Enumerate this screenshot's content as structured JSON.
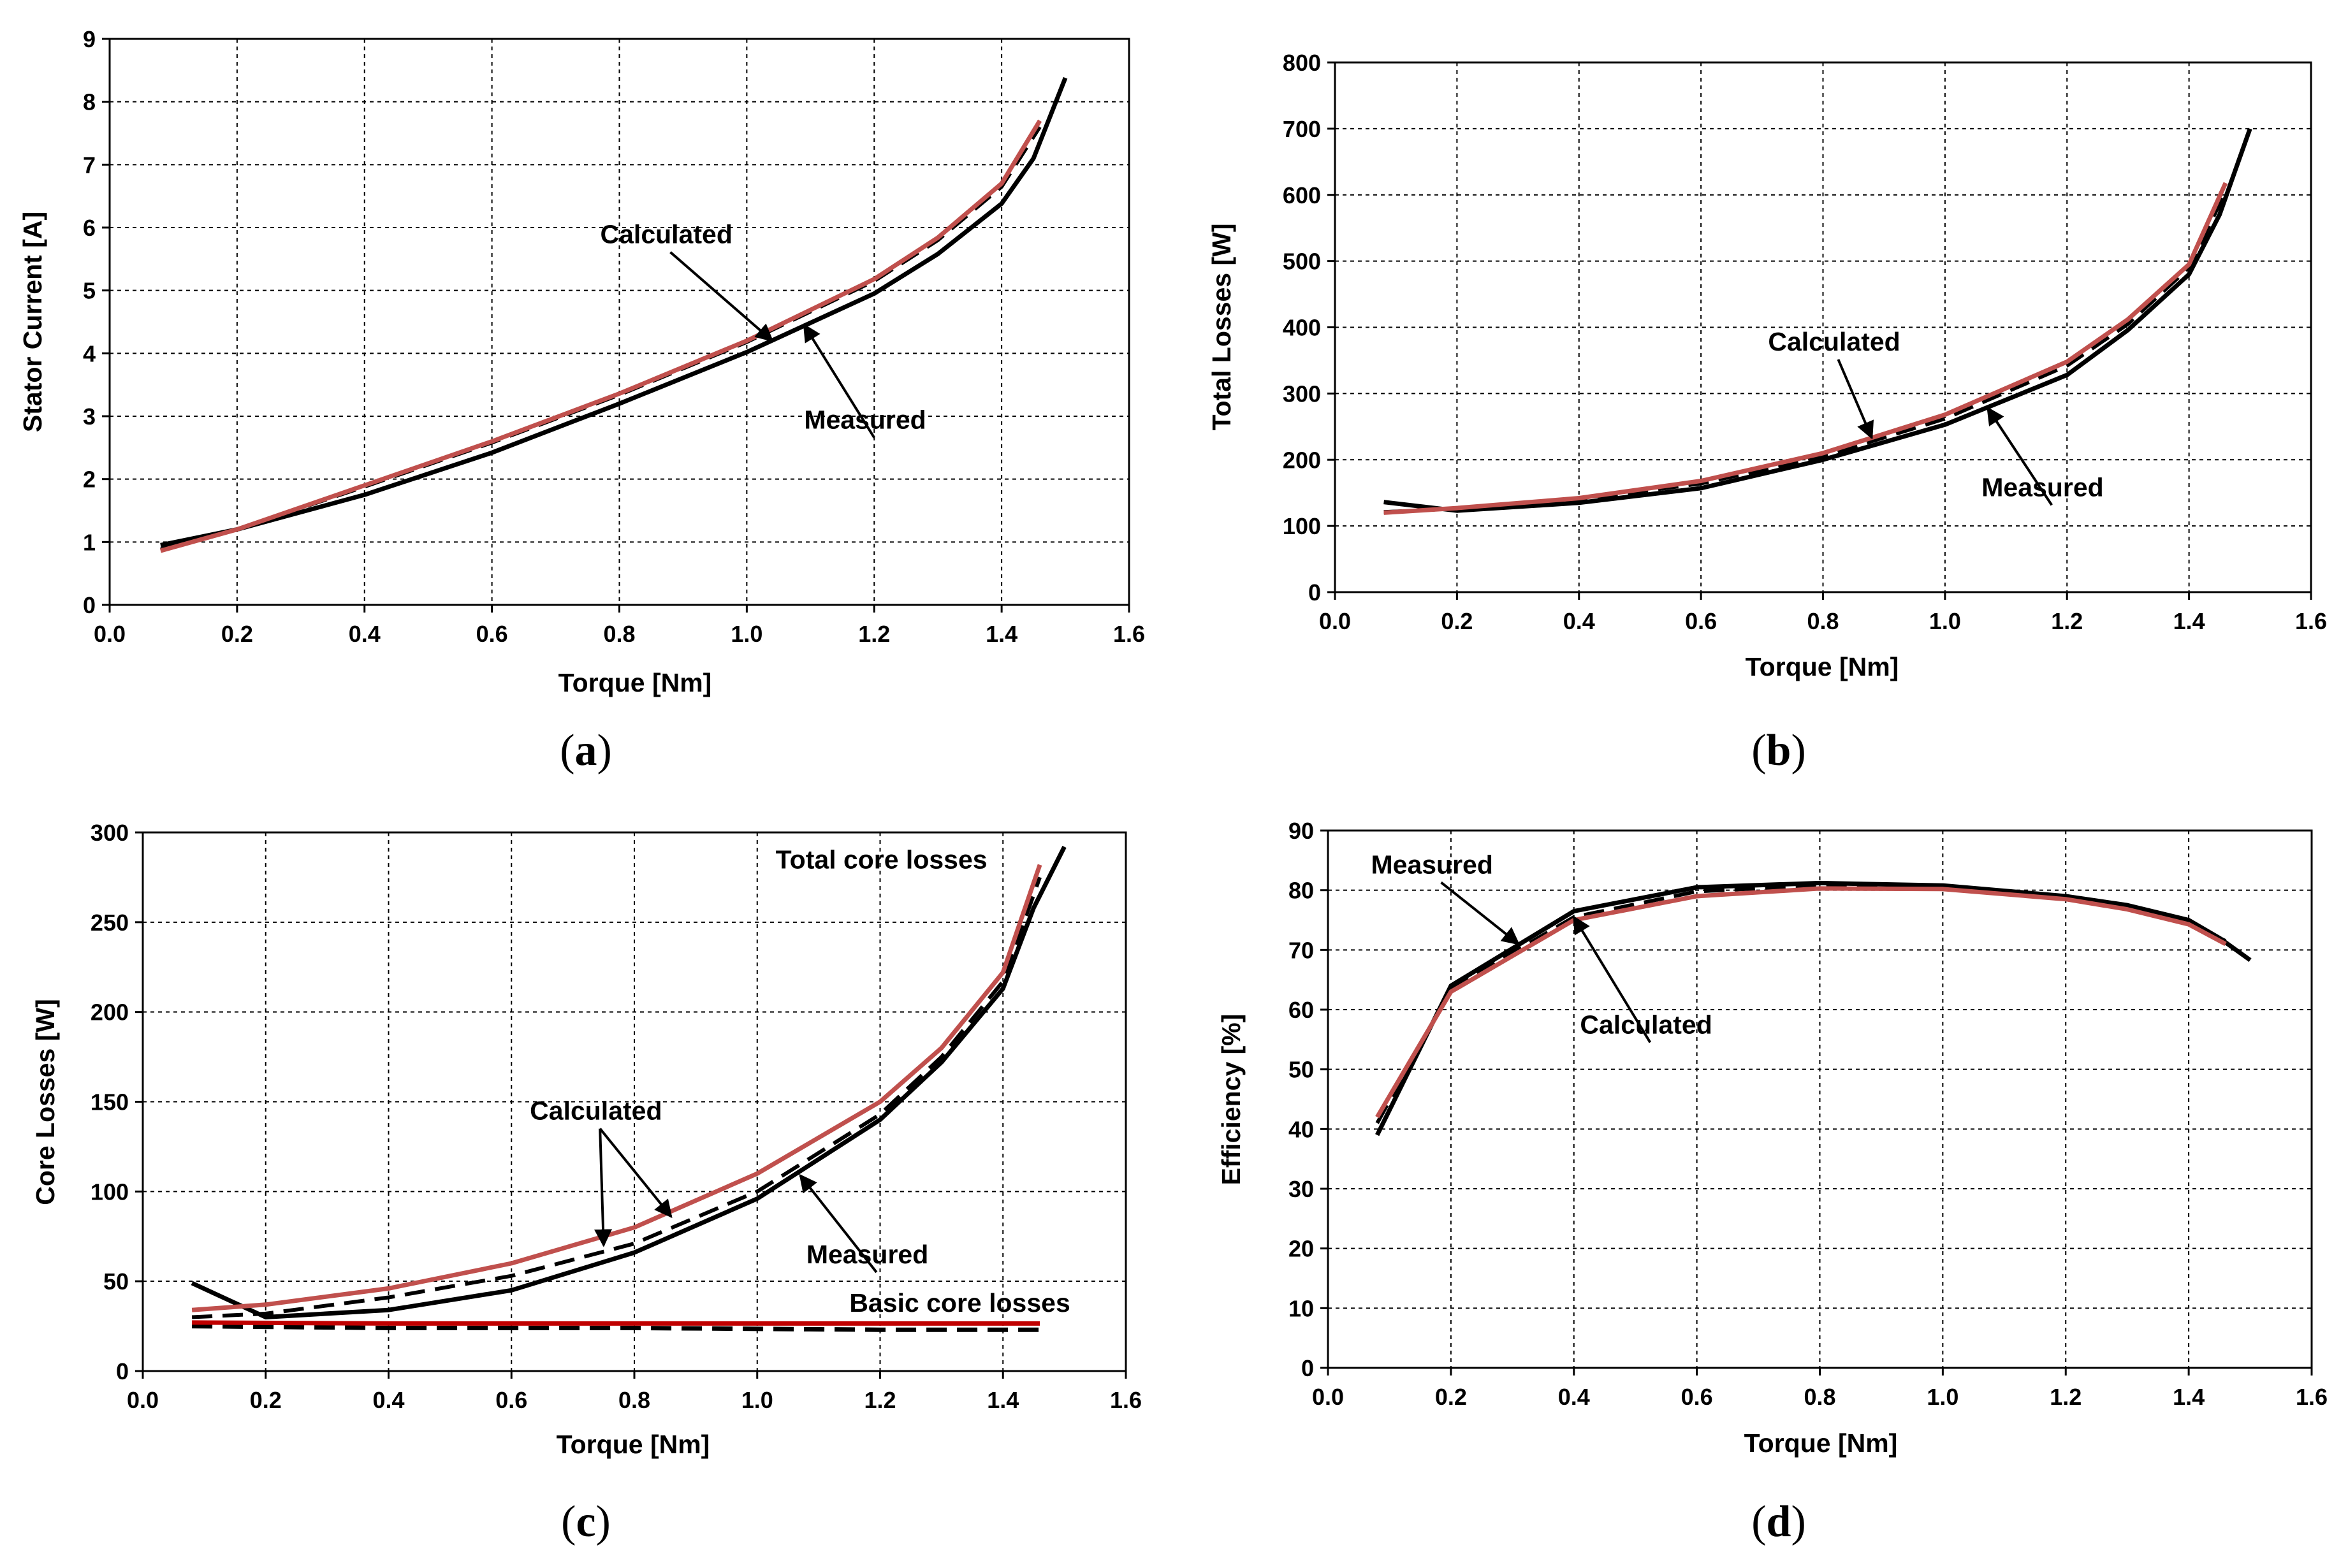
{
  "colors": {
    "measured": "#000000",
    "calculated_solid": "#c0504d",
    "calculated_dashed": "#000000",
    "basic_calculated": "#c00000",
    "grid": "#000000"
  },
  "chart_data": [
    {
      "id": "a",
      "type": "line",
      "panel_label": "(a)",
      "xlabel": "Torque [Nm]",
      "ylabel": "Stator Current [A]",
      "xlim": [
        0,
        1.6
      ],
      "ylim": [
        0,
        9
      ],
      "xticks": [
        0.0,
        0.2,
        0.4,
        0.6,
        0.8,
        1.0,
        1.2,
        1.4,
        1.6
      ],
      "xtick_labels": [
        "0.0",
        "0.2",
        "0.4",
        "0.6",
        "0.8",
        "1.0",
        "1.2",
        "1.4",
        "1.6"
      ],
      "yticks": [
        0,
        1,
        2,
        3,
        4,
        5,
        6,
        7,
        8,
        9
      ],
      "ytick_labels": [
        "0",
        "1",
        "2",
        "3",
        "4",
        "5",
        "6",
        "7",
        "8",
        "9"
      ],
      "series": [
        {
          "name": "Measured",
          "style": "measured",
          "x": [
            0.08,
            0.2,
            0.4,
            0.6,
            0.8,
            1.0,
            1.2,
            1.3,
            1.4,
            1.45,
            1.5
          ],
          "y": [
            0.95,
            1.2,
            1.75,
            2.42,
            3.2,
            4.02,
            4.95,
            5.58,
            6.38,
            7.1,
            8.38
          ]
        },
        {
          "name": "Calculated (dashed)",
          "style": "calculated_dashed",
          "x": [
            0.08,
            0.2,
            0.4,
            0.6,
            0.8,
            1.0,
            1.2,
            1.3,
            1.4,
            1.46
          ],
          "y": [
            0.88,
            1.2,
            1.88,
            2.58,
            3.34,
            4.18,
            5.15,
            5.8,
            6.65,
            7.6
          ]
        },
        {
          "name": "Calculated",
          "style": "calculated_solid",
          "x": [
            0.08,
            0.2,
            0.4,
            0.6,
            0.8,
            1.0,
            1.2,
            1.3,
            1.4,
            1.46
          ],
          "y": [
            0.86,
            1.2,
            1.9,
            2.6,
            3.36,
            4.2,
            5.18,
            5.84,
            6.7,
            7.7
          ]
        }
      ],
      "annotations": [
        {
          "text": "Calculated",
          "tx": 0.77,
          "ty": 5.75,
          "ax": 1.04,
          "ay": 4.2
        },
        {
          "text": "Measured",
          "tx": 1.09,
          "ty": 2.8,
          "ax": 1.09,
          "ay": 4.45
        }
      ]
    },
    {
      "id": "b",
      "type": "line",
      "panel_label": "(b)",
      "xlabel": "Torque [Nm]",
      "ylabel": "Total Losses [W]",
      "xlim": [
        0,
        1.6
      ],
      "ylim": [
        0,
        800
      ],
      "xticks": [
        0.0,
        0.2,
        0.4,
        0.6,
        0.8,
        1.0,
        1.2,
        1.4,
        1.6
      ],
      "xtick_labels": [
        "0.0",
        "0.2",
        "0.4",
        "0.6",
        "0.8",
        "1.0",
        "1.2",
        "1.4",
        "1.6"
      ],
      "yticks": [
        0,
        100,
        200,
        300,
        400,
        500,
        600,
        700,
        800
      ],
      "ytick_labels": [
        "0",
        "100",
        "200",
        "300",
        "400",
        "500",
        "600",
        "700",
        "800"
      ],
      "series": [
        {
          "name": "Measured",
          "style": "measured",
          "x": [
            0.08,
            0.2,
            0.4,
            0.6,
            0.8,
            1.0,
            1.2,
            1.3,
            1.4,
            1.45,
            1.5
          ],
          "y": [
            136,
            123,
            135,
            157,
            200,
            253,
            328,
            396,
            480,
            570,
            700
          ]
        },
        {
          "name": "Calculated (dashed)",
          "style": "calculated_dashed",
          "x": [
            0.08,
            0.2,
            0.4,
            0.6,
            0.8,
            1.0,
            1.2,
            1.3,
            1.4,
            1.46
          ],
          "y": [
            121,
            126,
            140,
            164,
            205,
            262,
            342,
            405,
            490,
            605
          ]
        },
        {
          "name": "Calculated",
          "style": "calculated_solid",
          "x": [
            0.08,
            0.2,
            0.4,
            0.6,
            0.8,
            1.0,
            1.2,
            1.3,
            1.4,
            1.46
          ],
          "y": [
            120,
            127,
            142,
            168,
            210,
            268,
            348,
            412,
            495,
            618
          ]
        }
      ],
      "annotations": [
        {
          "text": "Calculated",
          "tx": 0.71,
          "ty": 365,
          "ax": 0.88,
          "ay": 233
        },
        {
          "text": "Measured",
          "tx": 1.06,
          "ty": 145,
          "ax": 1.07,
          "ay": 278
        }
      ]
    },
    {
      "id": "c",
      "type": "line",
      "panel_label": "(c)",
      "xlabel": "Torque [Nm]",
      "ylabel": "Core Losses [W]",
      "xlim": [
        0,
        1.6
      ],
      "ylim": [
        0,
        300
      ],
      "xticks": [
        0.0,
        0.2,
        0.4,
        0.6,
        0.8,
        1.0,
        1.2,
        1.4,
        1.6
      ],
      "xtick_labels": [
        "0.0",
        "0.2",
        "0.4",
        "0.6",
        "0.8",
        "1.0",
        "1.2",
        "1.4",
        "1.6"
      ],
      "yticks": [
        0,
        50,
        100,
        150,
        200,
        250,
        300
      ],
      "ytick_labels": [
        "0",
        "50",
        "100",
        "150",
        "200",
        "250",
        "300"
      ],
      "series": [
        {
          "name": "Measured total core losses",
          "style": "measured",
          "x": [
            0.08,
            0.2,
            0.4,
            0.6,
            0.8,
            1.0,
            1.2,
            1.3,
            1.4,
            1.45,
            1.5
          ],
          "y": [
            49,
            30,
            34,
            45,
            66,
            96,
            140,
            172,
            213,
            258,
            292
          ]
        },
        {
          "name": "Calculated total core losses (dashed)",
          "style": "calculated_dashed",
          "x": [
            0.08,
            0.2,
            0.4,
            0.6,
            0.8,
            1.0,
            1.2,
            1.3,
            1.4,
            1.46
          ],
          "y": [
            30,
            32,
            41,
            53,
            71,
            100,
            143,
            175,
            217,
            275
          ]
        },
        {
          "name": "Calculated total core losses",
          "style": "calculated_solid",
          "x": [
            0.08,
            0.2,
            0.4,
            0.6,
            0.8,
            1.0,
            1.2,
            1.3,
            1.4,
            1.46
          ],
          "y": [
            34,
            37,
            46,
            60,
            80,
            110,
            150,
            180,
            222,
            282
          ]
        },
        {
          "name": "Measured basic core losses",
          "style": "measured_dashed",
          "x": [
            0.08,
            0.4,
            0.8,
            1.2,
            1.46
          ],
          "y": [
            25,
            24,
            24,
            23,
            23
          ]
        },
        {
          "name": "Calculated basic core losses",
          "style": "basic_calculated",
          "x": [
            0.08,
            0.4,
            0.8,
            1.2,
            1.46
          ],
          "y": [
            27,
            26.5,
            26.5,
            26.5,
            26.5
          ]
        }
      ],
      "annotations": [
        {
          "text": "Total core losses",
          "tx": 1.03,
          "ty": 280
        },
        {
          "text": "Basic core losses",
          "tx": 1.15,
          "ty": 33
        },
        {
          "text": "Calculated",
          "tx": 0.63,
          "ty": 140,
          "ax": 0.75,
          "ay": 70
        },
        {
          "text": "Calculated",
          "tx": 0.63,
          "ty": 140,
          "ax": 0.86,
          "ay": 86,
          "text_hidden": true
        },
        {
          "text": "Measured",
          "tx": 1.08,
          "ty": 60,
          "ax": 1.07,
          "ay": 109
        }
      ]
    },
    {
      "id": "d",
      "type": "line",
      "panel_label": "(d)",
      "xlabel": "Torque [Nm]",
      "ylabel": "Efficiency [%]",
      "xlim": [
        0,
        1.6
      ],
      "ylim": [
        0,
        90
      ],
      "xticks": [
        0.0,
        0.2,
        0.4,
        0.6,
        0.8,
        1.0,
        1.2,
        1.4,
        1.6
      ],
      "xtick_labels": [
        "0.0",
        "0.2",
        "0.4",
        "0.6",
        "0.8",
        "1.0",
        "1.2",
        "1.4",
        "1.6"
      ],
      "yticks": [
        0,
        10,
        20,
        30,
        40,
        50,
        60,
        70,
        80,
        90
      ],
      "ytick_labels": [
        "0",
        "10",
        "20",
        "30",
        "40",
        "50",
        "60",
        "70",
        "80",
        "90"
      ],
      "series": [
        {
          "name": "Measured",
          "style": "measured",
          "x": [
            0.08,
            0.2,
            0.4,
            0.6,
            0.8,
            1.0,
            1.2,
            1.3,
            1.4,
            1.45,
            1.5
          ],
          "y": [
            39,
            64,
            76.5,
            80.5,
            81.2,
            80.8,
            79,
            77.5,
            75,
            72,
            68.3
          ]
        },
        {
          "name": "Calculated (dashed)",
          "style": "calculated_dashed",
          "x": [
            0.08,
            0.2,
            0.4,
            0.6,
            0.8,
            1.0,
            1.2,
            1.3,
            1.4,
            1.46
          ],
          "y": [
            41,
            63.5,
            75.5,
            79.8,
            80.8,
            80.6,
            78.8,
            77,
            74.6,
            71.5
          ]
        },
        {
          "name": "Calculated",
          "style": "calculated_solid",
          "x": [
            0.08,
            0.2,
            0.4,
            0.6,
            0.8,
            1.0,
            1.2,
            1.3,
            1.4,
            1.46
          ],
          "y": [
            42,
            63,
            75,
            79,
            80.3,
            80.2,
            78.5,
            76.8,
            74.3,
            71
          ]
        }
      ],
      "annotations": [
        {
          "text": "Measured",
          "tx": 0.07,
          "ty": 82.8,
          "ax": 0.31,
          "ay": 71
        },
        {
          "text": "Calculated",
          "tx": 0.41,
          "ty": 56,
          "ax": 0.4,
          "ay": 75.5
        }
      ]
    }
  ]
}
